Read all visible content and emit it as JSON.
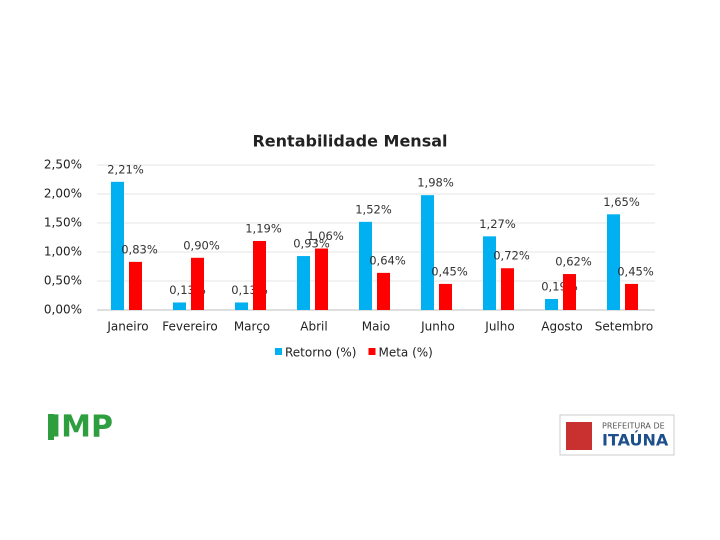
{
  "chart_data": {
    "type": "bar",
    "title": "Rentabilidade Mensal",
    "categories": [
      "Janeiro",
      "Fevereiro",
      "Março",
      "Abril",
      "Maio",
      "Junho",
      "Julho",
      "Agosto",
      "Setembro"
    ],
    "series": [
      {
        "name": "Retorno (%)",
        "color": "#00b0f0",
        "values": [
          2.21,
          0.13,
          0.13,
          0.93,
          1.52,
          1.98,
          1.27,
          0.19,
          1.65
        ],
        "value_labels": [
          "2,21%",
          "0,13%",
          "0,13%",
          "0,93%",
          "1,52%",
          "1,98%",
          "1,27%",
          "0,19%",
          "1,65%"
        ]
      },
      {
        "name": "Meta (%)",
        "color": "#ff0000",
        "values": [
          0.83,
          0.9,
          1.19,
          1.06,
          0.64,
          0.45,
          0.72,
          0.62,
          0.45
        ],
        "value_labels": [
          "0,83%",
          "0,90%",
          "1,19%",
          "1,06%",
          "0,64%",
          "0,45%",
          "0,72%",
          "0,62%",
          "0,45%"
        ]
      }
    ],
    "ylim": [
      0,
      2.5
    ],
    "yticks": [
      {
        "value": 0,
        "label": "0,00%"
      },
      {
        "value": 0.5,
        "label": "0,50%"
      },
      {
        "value": 1,
        "label": "1,00%"
      },
      {
        "value": 1.5,
        "label": "1,50%"
      },
      {
        "value": 2,
        "label": "2,00%"
      },
      {
        "value": 2.5,
        "label": "2,50%"
      }
    ],
    "grid": true,
    "legend": "bottom"
  },
  "logos": {
    "left": "IMP",
    "right_top": "PREFEITURA DE",
    "right_main": "ITAÚNA"
  }
}
